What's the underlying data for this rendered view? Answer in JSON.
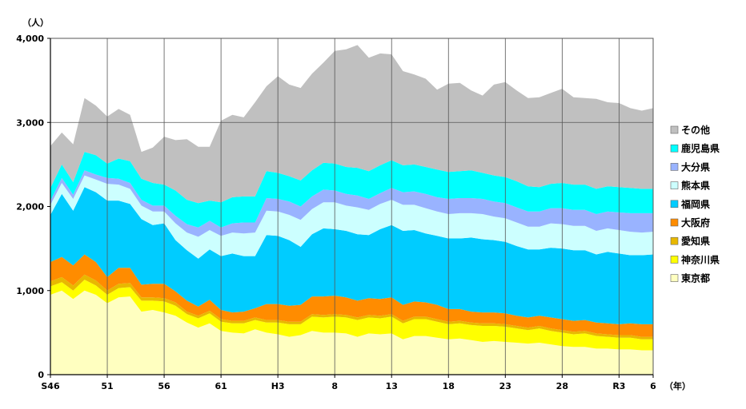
{
  "chart_data": {
    "type": "area",
    "stacked": true,
    "ylabel": "（人）",
    "xunit": "（年）",
    "ylim": [
      0,
      4000
    ],
    "yticks": [
      0,
      1000,
      2000,
      3000,
      4000
    ],
    "ytick_labels": [
      "0",
      "1,000",
      "2,000",
      "3,000",
      "4,000"
    ],
    "x_labels": [
      {
        "index": 0,
        "label": "S46"
      },
      {
        "index": 5,
        "label": "51"
      },
      {
        "index": 10,
        "label": "56"
      },
      {
        "index": 15,
        "label": "61"
      },
      {
        "index": 20,
        "label": "H3"
      },
      {
        "index": 25,
        "label": "8"
      },
      {
        "index": 30,
        "label": "13"
      },
      {
        "index": 35,
        "label": "18"
      },
      {
        "index": 40,
        "label": "23"
      },
      {
        "index": 45,
        "label": "28"
      },
      {
        "index": 50,
        "label": "R3"
      },
      {
        "index": 53,
        "label": "6"
      }
    ],
    "grid": "vertical lines every 5 years; horizontal lines at 3,000 and 4,000",
    "legend_position": "right",
    "series": [
      {
        "name": "東京都",
        "color": "#ffffc0",
        "values": [
          950,
          1000,
          900,
          1000,
          950,
          850,
          920,
          930,
          750,
          770,
          740,
          700,
          620,
          560,
          610,
          520,
          500,
          490,
          540,
          500,
          480,
          450,
          470,
          520,
          500,
          500,
          490,
          450,
          490,
          480,
          490,
          420,
          460,
          460,
          440,
          420,
          430,
          410,
          390,
          400,
          390,
          380,
          370,
          380,
          360,
          340,
          330,
          330,
          310,
          310,
          300,
          300,
          290,
          290
        ]
      },
      {
        "name": "神奈川県",
        "color": "#ffff00",
        "values": [
          100,
          100,
          100,
          130,
          110,
          100,
          110,
          110,
          130,
          110,
          130,
          120,
          100,
          110,
          120,
          110,
          110,
          120,
          110,
          120,
          140,
          150,
          130,
          170,
          180,
          190,
          190,
          200,
          190,
          190,
          200,
          190,
          200,
          200,
          190,
          180,
          180,
          180,
          190,
          180,
          180,
          170,
          160,
          170,
          160,
          160,
          150,
          160,
          150,
          140,
          140,
          140,
          130,
          130
        ]
      },
      {
        "name": "愛知県",
        "color": "#e8b800",
        "values": [
          60,
          60,
          60,
          60,
          60,
          50,
          50,
          50,
          40,
          40,
          40,
          40,
          30,
          30,
          30,
          30,
          30,
          30,
          30,
          30,
          30,
          30,
          30,
          30,
          30,
          30,
          30,
          30,
          30,
          30,
          30,
          30,
          30,
          30,
          30,
          30,
          30,
          30,
          30,
          30,
          30,
          30,
          30,
          30,
          30,
          30,
          30,
          30,
          30,
          30,
          30,
          30,
          30,
          30
        ]
      },
      {
        "name": "大阪府",
        "color": "#ff8c00",
        "values": [
          230,
          240,
          240,
          240,
          220,
          160,
          190,
          180,
          150,
          160,
          170,
          130,
          130,
          110,
          130,
          110,
          100,
          110,
          110,
          190,
          190,
          190,
          200,
          210,
          220,
          220,
          210,
          200,
          200,
          200,
          200,
          190,
          180,
          170,
          170,
          150,
          140,
          130,
          130,
          130,
          130,
          120,
          120,
          120,
          130,
          130,
          130,
          130,
          130,
          130,
          130,
          140,
          150,
          150
        ]
      },
      {
        "name": "福岡県",
        "color": "#00ccff",
        "values": [
          560,
          750,
          650,
          800,
          830,
          910,
          800,
          760,
          780,
          700,
          720,
          610,
          600,
          570,
          600,
          640,
          700,
          660,
          620,
          820,
          810,
          780,
          690,
          740,
          810,
          790,
          790,
          790,
          750,
          830,
          860,
          880,
          850,
          820,
          820,
          840,
          840,
          880,
          870,
          860,
          850,
          830,
          810,
          790,
          830,
          840,
          840,
          830,
          810,
          850,
          840,
          810,
          820,
          830
        ]
      },
      {
        "name": "熊本県",
        "color": "#ccffff",
        "values": [
          120,
          130,
          140,
          140,
          150,
          200,
          190,
          180,
          160,
          160,
          140,
          200,
          210,
          260,
          230,
          240,
          250,
          270,
          280,
          290,
          290,
          300,
          320,
          300,
          310,
          320,
          300,
          320,
          300,
          300,
          300,
          310,
          300,
          300,
          290,
          290,
          300,
          290,
          300,
          280,
          280,
          280,
          270,
          270,
          290,
          290,
          290,
          290,
          280,
          280,
          280,
          280,
          270,
          270
        ]
      },
      {
        "name": "大分県",
        "color": "#99b3ff",
        "values": [
          50,
          60,
          50,
          60,
          60,
          70,
          70,
          70,
          70,
          70,
          70,
          90,
          100,
          110,
          110,
          100,
          110,
          130,
          120,
          150,
          150,
          160,
          160,
          150,
          150,
          140,
          140,
          140,
          130,
          130,
          140,
          150,
          160,
          170,
          170,
          180,
          180,
          180,
          180,
          180,
          180,
          180,
          180,
          180,
          180,
          190,
          190,
          190,
          200,
          200,
          210,
          220,
          230,
          220
        ]
      },
      {
        "name": "鹿児島県",
        "color": "#00ffff",
        "values": [
          150,
          160,
          150,
          220,
          230,
          170,
          240,
          260,
          250,
          270,
          250,
          300,
          290,
          290,
          240,
          300,
          310,
          310,
          310,
          320,
          310,
          300,
          310,
          310,
          320,
          320,
          320,
          330,
          330,
          330,
          330,
          320,
          320,
          320,
          330,
          320,
          320,
          330,
          310,
          310,
          310,
          310,
          300,
          290,
          290,
          300,
          300,
          300,
          300,
          300,
          300,
          300,
          290,
          290
        ]
      },
      {
        "name": "その他",
        "color": "#c0c0c0",
        "values": [
          500,
          380,
          450,
          640,
          590,
          560,
          590,
          550,
          320,
          420,
          570,
          600,
          720,
          670,
          640,
          970,
          980,
          940,
          1120,
          1010,
          1150,
          1090,
          1100,
          1150,
          1190,
          1340,
          1400,
          1460,
          1350,
          1330,
          1260,
          1120,
          1070,
          1050,
          950,
          1050,
          1050,
          950,
          920,
          1080,
          1130,
          1080,
          1050,
          1070,
          1080,
          1120,
          1040,
          1030,
          1070,
          1000,
          1000,
          950,
          930,
          960
        ]
      }
    ]
  }
}
